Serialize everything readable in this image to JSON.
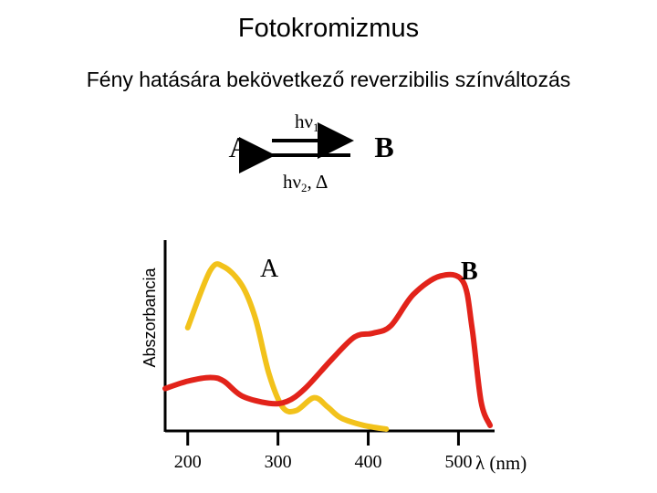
{
  "page": {
    "title": "Fotokromizmus",
    "subtitle": "Fény hatására bekövetkező reverzibilis színváltozás"
  },
  "reaction": {
    "left_species": "A",
    "right_species": "B",
    "forward": {
      "symbol": "hν",
      "subscript": "1"
    },
    "backward": {
      "symbol": "hν",
      "subscript": "2",
      "suffix": ", Δ"
    }
  },
  "chart_data": {
    "type": "line",
    "ylabel": "Abszorbancia",
    "xlabel": "λ (nm)",
    "x_ticks": [
      "200",
      "300",
      "400",
      "500"
    ],
    "series": [
      {
        "name": "A",
        "color": "#f2c21b",
        "points": [
          [
            200,
            0.55
          ],
          [
            225,
            0.86
          ],
          [
            240,
            0.88
          ],
          [
            260,
            0.78
          ],
          [
            275,
            0.6
          ],
          [
            290,
            0.3
          ],
          [
            305,
            0.12
          ],
          [
            320,
            0.1
          ],
          [
            340,
            0.17
          ],
          [
            355,
            0.12
          ],
          [
            370,
            0.06
          ],
          [
            395,
            0.02
          ],
          [
            420,
            0.0
          ]
        ]
      },
      {
        "name": "B",
        "color": "#e2231a",
        "points": [
          [
            175,
            0.22
          ],
          [
            200,
            0.26
          ],
          [
            225,
            0.28
          ],
          [
            240,
            0.26
          ],
          [
            260,
            0.18
          ],
          [
            290,
            0.14
          ],
          [
            310,
            0.15
          ],
          [
            330,
            0.22
          ],
          [
            360,
            0.38
          ],
          [
            385,
            0.5
          ],
          [
            405,
            0.52
          ],
          [
            425,
            0.56
          ],
          [
            450,
            0.73
          ],
          [
            480,
            0.83
          ],
          [
            505,
            0.8
          ],
          [
            515,
            0.55
          ],
          [
            525,
            0.15
          ],
          [
            535,
            0.02
          ]
        ]
      }
    ],
    "series_labels": [
      "A",
      "B"
    ],
    "xlim": [
      175,
      540
    ],
    "ylim": [
      0,
      1
    ],
    "grid": false
  }
}
